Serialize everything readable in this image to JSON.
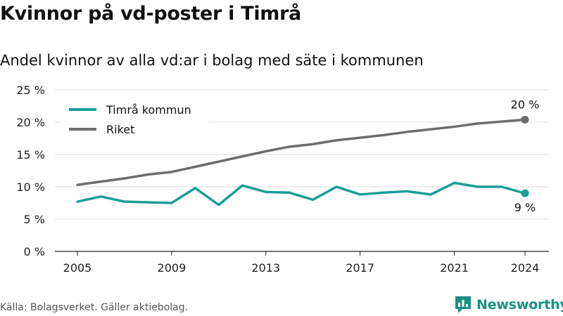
{
  "title": "Kvinnor på vd-poster i Timrå",
  "subtitle": "Andel kvinnor av alla vd:ar i bolag med säte i kommunen",
  "source": "Källa: Bolagsverket. Gäller aktiebolag.",
  "brand": {
    "name": "Newsworthy",
    "color": "#199083",
    "icon": "bar-chart-speech-bubble-icon"
  },
  "chart_data": {
    "type": "line",
    "x": [
      2005,
      2006,
      2007,
      2008,
      2009,
      2010,
      2011,
      2012,
      2013,
      2014,
      2015,
      2016,
      2017,
      2018,
      2019,
      2020,
      2021,
      2022,
      2023,
      2024
    ],
    "series": [
      {
        "name": "Timrå kommun",
        "color": "#199e95",
        "values": [
          7.7,
          8.5,
          7.7,
          7.6,
          7.5,
          9.8,
          7.2,
          10.2,
          9.2,
          9.1,
          8.0,
          10.0,
          8.8,
          9.1,
          9.3,
          8.8,
          10.6,
          10.0,
          10.0,
          9.0
        ],
        "end_label": "9 %"
      },
      {
        "name": "Riket",
        "color": "#6c6c70",
        "values": [
          10.3,
          10.8,
          11.3,
          11.9,
          12.3,
          13.1,
          13.9,
          14.7,
          15.5,
          16.2,
          16.6,
          17.2,
          17.6,
          18.0,
          18.5,
          18.9,
          19.3,
          19.8,
          20.1,
          20.4
        ],
        "end_label": "20 %"
      }
    ],
    "x_ticks": [
      2005,
      2009,
      2013,
      2017,
      2021,
      2024
    ],
    "y_ticks": [
      0,
      5,
      10,
      15,
      20,
      25
    ],
    "y_tick_labels": [
      "0 %",
      "5 %",
      "10 %",
      "15 %",
      "20 %",
      "25 %"
    ],
    "ylim": [
      0,
      25
    ],
    "xlim": [
      2005,
      2024
    ],
    "grid": "horizontal",
    "legend": "top-left"
  }
}
